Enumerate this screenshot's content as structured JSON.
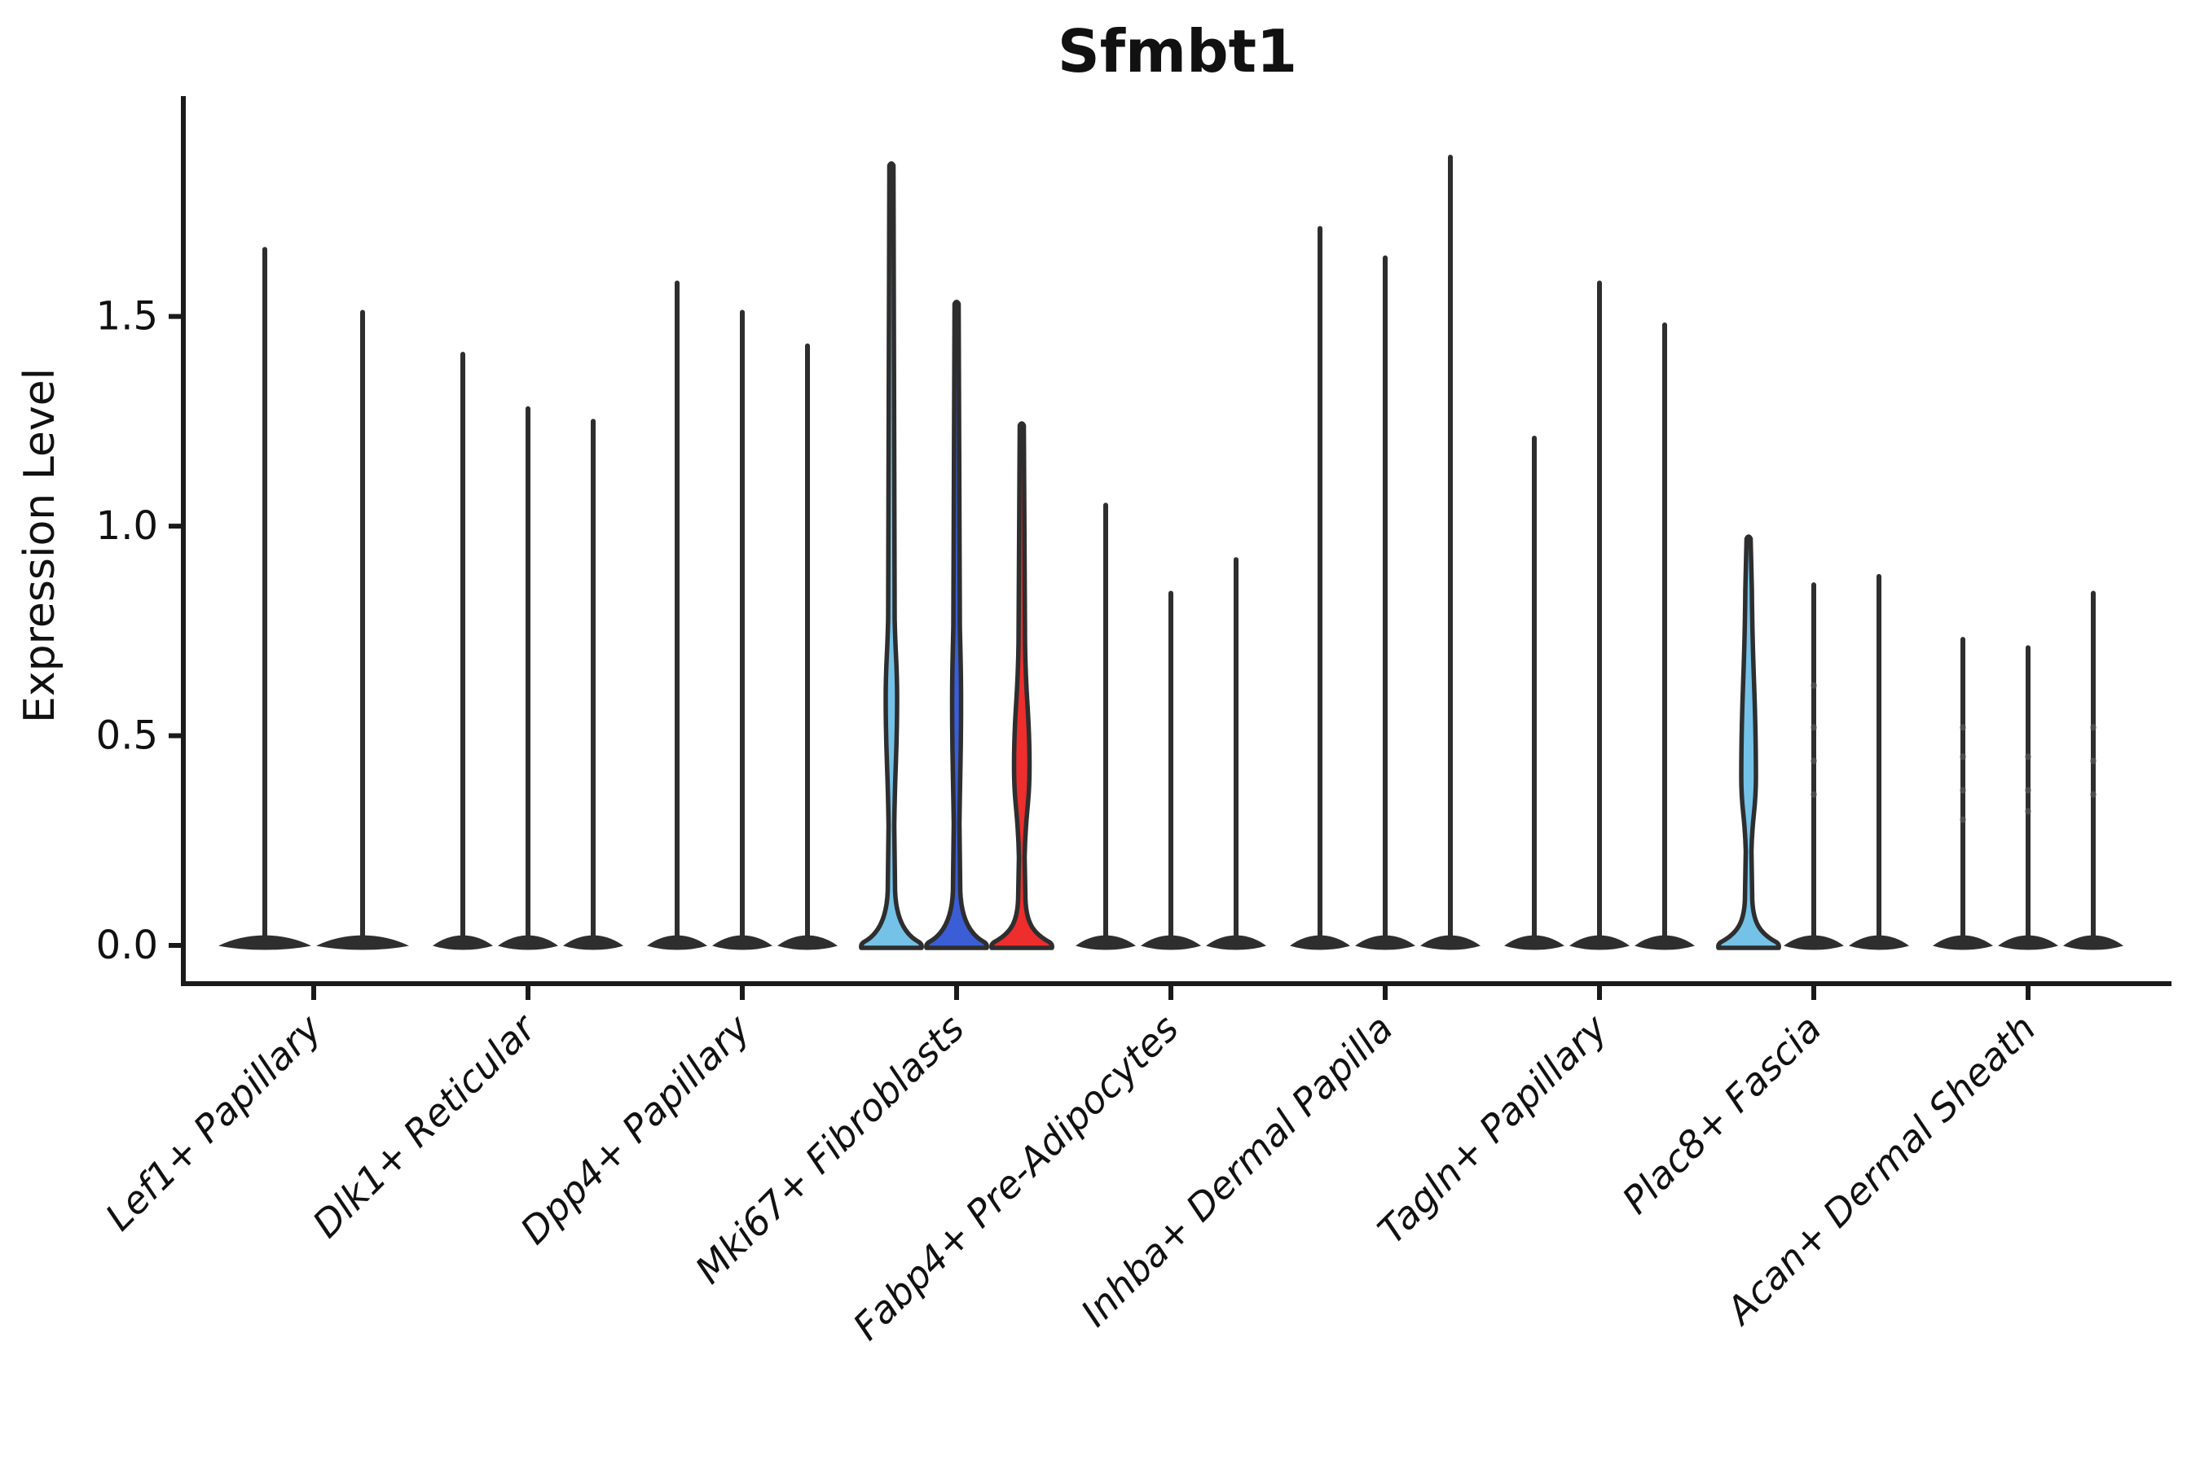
{
  "chart_data": {
    "type": "violin",
    "title": "Sfmbt1",
    "ylabel": "Expression Level",
    "xlabel": "",
    "ylim": [
      -0.09,
      2.03
    ],
    "yticks": [
      0.0,
      0.5,
      1.0,
      1.5
    ],
    "ytick_labels": [
      "0.0",
      "0.5",
      "1.0",
      "1.5"
    ],
    "grid": false,
    "legend": null,
    "colors": {
      "outline": "#2E2E2E",
      "spine": "#1A1A1A",
      "light_blue": "#74C2E8",
      "royal_blue": "#3B5ED6",
      "red": "#EE2D2D",
      "dot": "#666666",
      "plain_fill": "#2E2E2E"
    },
    "categories": [
      {
        "label": "Lef1+ Papillary",
        "violins": [
          {
            "max": 1.66
          },
          {
            "max": 1.51
          }
        ]
      },
      {
        "label": "Dlk1+ Reticular",
        "violins": [
          {
            "max": 1.41
          },
          {
            "max": 1.28
          },
          {
            "max": 1.25
          }
        ]
      },
      {
        "label": "Dpp4+ Papillary",
        "violins": [
          {
            "max": 1.58
          },
          {
            "max": 1.51
          },
          {
            "max": 1.43
          }
        ]
      },
      {
        "label": "Mki67+ Fibroblasts",
        "violins": [
          {
            "max": 1.86,
            "fill": "light_blue",
            "body": {
              "lens_top": 0.78,
              "lens_peak": 0.59,
              "lens_hw": 7,
              "pinch": 0.285,
              "cone_top": 0.13
            }
          },
          {
            "max": 1.53,
            "fill": "royal_blue",
            "body": {
              "lens_top": 0.76,
              "lens_peak": 0.58,
              "lens_hw": 5.5,
              "pinch": 0.29,
              "cone_top": 0.13
            }
          },
          {
            "max": 1.24,
            "fill": "red",
            "body": {
              "lens_top": 0.72,
              "lens_peak": 0.43,
              "lens_hw": 9.5,
              "pinch": 0.21,
              "cone_top": 0.11
            }
          }
        ]
      },
      {
        "label": "Fabp4+ Pre-Adipocytes",
        "violins": [
          {
            "max": 1.05
          },
          {
            "max": 0.84
          },
          {
            "max": 0.92
          }
        ]
      },
      {
        "label": "Inhba+ Dermal Papilla",
        "violins": [
          {
            "max": 1.71
          },
          {
            "max": 1.64
          },
          {
            "max": 1.88
          }
        ]
      },
      {
        "label": "Tagln+ Papillary",
        "violins": [
          {
            "max": 1.21
          },
          {
            "max": 1.58
          },
          {
            "max": 1.48
          }
        ]
      },
      {
        "label": "Plac8+ Fascia",
        "violins": [
          {
            "max": 0.97,
            "fill": "light_blue",
            "body": {
              "lens_top": 0.85,
              "lens_peak": 0.4,
              "lens_hw": 9,
              "pinch": 0.225,
              "cone_top": 0.11
            }
          },
          {
            "max": 0.86,
            "dots": [
              0.62,
              0.52,
              0.44,
              0.36
            ]
          },
          {
            "max": 0.88
          }
        ]
      },
      {
        "label": "Acan+ Dermal Sheath",
        "violins": [
          {
            "max": 0.73,
            "dots": [
              0.52,
              0.45,
              0.37,
              0.3
            ]
          },
          {
            "max": 0.71,
            "dots": [
              0.45,
              0.37,
              0.32
            ]
          },
          {
            "max": 0.84,
            "dots": [
              0.52,
              0.44,
              0.36
            ]
          }
        ]
      }
    ]
  }
}
